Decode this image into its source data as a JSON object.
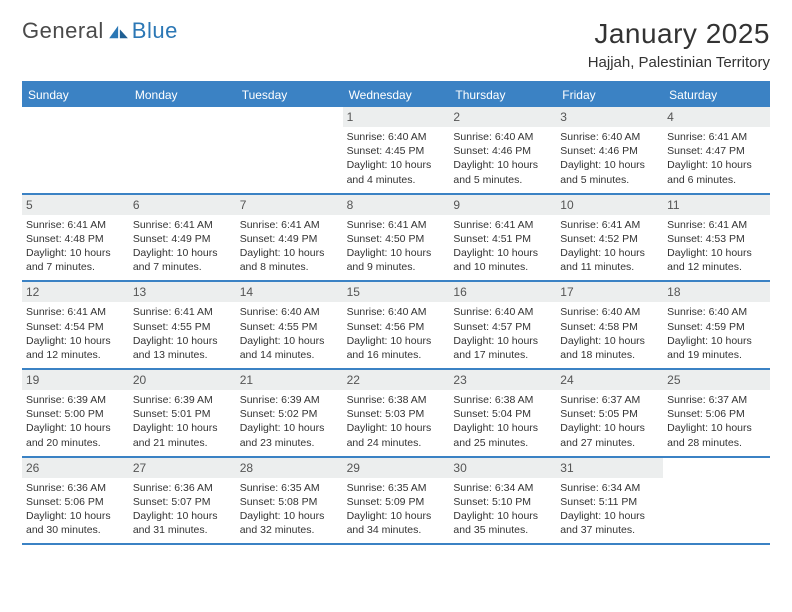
{
  "brand": {
    "text1": "General",
    "text2": "Blue"
  },
  "title": {
    "month": "January 2025",
    "location": "Hajjah, Palestinian Territory"
  },
  "colors": {
    "accent": "#3b82c4",
    "band": "#eceeee",
    "text": "#333333",
    "logo_gray": "#4a4a4a"
  },
  "weekdays": [
    "Sunday",
    "Monday",
    "Tuesday",
    "Wednesday",
    "Thursday",
    "Friday",
    "Saturday"
  ],
  "weeks": [
    [
      {
        "day": ""
      },
      {
        "day": ""
      },
      {
        "day": ""
      },
      {
        "day": "1",
        "sunrise": "Sunrise: 6:40 AM",
        "sunset": "Sunset: 4:45 PM",
        "dl1": "Daylight: 10 hours",
        "dl2": "and 4 minutes."
      },
      {
        "day": "2",
        "sunrise": "Sunrise: 6:40 AM",
        "sunset": "Sunset: 4:46 PM",
        "dl1": "Daylight: 10 hours",
        "dl2": "and 5 minutes."
      },
      {
        "day": "3",
        "sunrise": "Sunrise: 6:40 AM",
        "sunset": "Sunset: 4:46 PM",
        "dl1": "Daylight: 10 hours",
        "dl2": "and 5 minutes."
      },
      {
        "day": "4",
        "sunrise": "Sunrise: 6:41 AM",
        "sunset": "Sunset: 4:47 PM",
        "dl1": "Daylight: 10 hours",
        "dl2": "and 6 minutes."
      }
    ],
    [
      {
        "day": "5",
        "sunrise": "Sunrise: 6:41 AM",
        "sunset": "Sunset: 4:48 PM",
        "dl1": "Daylight: 10 hours",
        "dl2": "and 7 minutes."
      },
      {
        "day": "6",
        "sunrise": "Sunrise: 6:41 AM",
        "sunset": "Sunset: 4:49 PM",
        "dl1": "Daylight: 10 hours",
        "dl2": "and 7 minutes."
      },
      {
        "day": "7",
        "sunrise": "Sunrise: 6:41 AM",
        "sunset": "Sunset: 4:49 PM",
        "dl1": "Daylight: 10 hours",
        "dl2": "and 8 minutes."
      },
      {
        "day": "8",
        "sunrise": "Sunrise: 6:41 AM",
        "sunset": "Sunset: 4:50 PM",
        "dl1": "Daylight: 10 hours",
        "dl2": "and 9 minutes."
      },
      {
        "day": "9",
        "sunrise": "Sunrise: 6:41 AM",
        "sunset": "Sunset: 4:51 PM",
        "dl1": "Daylight: 10 hours",
        "dl2": "and 10 minutes."
      },
      {
        "day": "10",
        "sunrise": "Sunrise: 6:41 AM",
        "sunset": "Sunset: 4:52 PM",
        "dl1": "Daylight: 10 hours",
        "dl2": "and 11 minutes."
      },
      {
        "day": "11",
        "sunrise": "Sunrise: 6:41 AM",
        "sunset": "Sunset: 4:53 PM",
        "dl1": "Daylight: 10 hours",
        "dl2": "and 12 minutes."
      }
    ],
    [
      {
        "day": "12",
        "sunrise": "Sunrise: 6:41 AM",
        "sunset": "Sunset: 4:54 PM",
        "dl1": "Daylight: 10 hours",
        "dl2": "and 12 minutes."
      },
      {
        "day": "13",
        "sunrise": "Sunrise: 6:41 AM",
        "sunset": "Sunset: 4:55 PM",
        "dl1": "Daylight: 10 hours",
        "dl2": "and 13 minutes."
      },
      {
        "day": "14",
        "sunrise": "Sunrise: 6:40 AM",
        "sunset": "Sunset: 4:55 PM",
        "dl1": "Daylight: 10 hours",
        "dl2": "and 14 minutes."
      },
      {
        "day": "15",
        "sunrise": "Sunrise: 6:40 AM",
        "sunset": "Sunset: 4:56 PM",
        "dl1": "Daylight: 10 hours",
        "dl2": "and 16 minutes."
      },
      {
        "day": "16",
        "sunrise": "Sunrise: 6:40 AM",
        "sunset": "Sunset: 4:57 PM",
        "dl1": "Daylight: 10 hours",
        "dl2": "and 17 minutes."
      },
      {
        "day": "17",
        "sunrise": "Sunrise: 6:40 AM",
        "sunset": "Sunset: 4:58 PM",
        "dl1": "Daylight: 10 hours",
        "dl2": "and 18 minutes."
      },
      {
        "day": "18",
        "sunrise": "Sunrise: 6:40 AM",
        "sunset": "Sunset: 4:59 PM",
        "dl1": "Daylight: 10 hours",
        "dl2": "and 19 minutes."
      }
    ],
    [
      {
        "day": "19",
        "sunrise": "Sunrise: 6:39 AM",
        "sunset": "Sunset: 5:00 PM",
        "dl1": "Daylight: 10 hours",
        "dl2": "and 20 minutes."
      },
      {
        "day": "20",
        "sunrise": "Sunrise: 6:39 AM",
        "sunset": "Sunset: 5:01 PM",
        "dl1": "Daylight: 10 hours",
        "dl2": "and 21 minutes."
      },
      {
        "day": "21",
        "sunrise": "Sunrise: 6:39 AM",
        "sunset": "Sunset: 5:02 PM",
        "dl1": "Daylight: 10 hours",
        "dl2": "and 23 minutes."
      },
      {
        "day": "22",
        "sunrise": "Sunrise: 6:38 AM",
        "sunset": "Sunset: 5:03 PM",
        "dl1": "Daylight: 10 hours",
        "dl2": "and 24 minutes."
      },
      {
        "day": "23",
        "sunrise": "Sunrise: 6:38 AM",
        "sunset": "Sunset: 5:04 PM",
        "dl1": "Daylight: 10 hours",
        "dl2": "and 25 minutes."
      },
      {
        "day": "24",
        "sunrise": "Sunrise: 6:37 AM",
        "sunset": "Sunset: 5:05 PM",
        "dl1": "Daylight: 10 hours",
        "dl2": "and 27 minutes."
      },
      {
        "day": "25",
        "sunrise": "Sunrise: 6:37 AM",
        "sunset": "Sunset: 5:06 PM",
        "dl1": "Daylight: 10 hours",
        "dl2": "and 28 minutes."
      }
    ],
    [
      {
        "day": "26",
        "sunrise": "Sunrise: 6:36 AM",
        "sunset": "Sunset: 5:06 PM",
        "dl1": "Daylight: 10 hours",
        "dl2": "and 30 minutes."
      },
      {
        "day": "27",
        "sunrise": "Sunrise: 6:36 AM",
        "sunset": "Sunset: 5:07 PM",
        "dl1": "Daylight: 10 hours",
        "dl2": "and 31 minutes."
      },
      {
        "day": "28",
        "sunrise": "Sunrise: 6:35 AM",
        "sunset": "Sunset: 5:08 PM",
        "dl1": "Daylight: 10 hours",
        "dl2": "and 32 minutes."
      },
      {
        "day": "29",
        "sunrise": "Sunrise: 6:35 AM",
        "sunset": "Sunset: 5:09 PM",
        "dl1": "Daylight: 10 hours",
        "dl2": "and 34 minutes."
      },
      {
        "day": "30",
        "sunrise": "Sunrise: 6:34 AM",
        "sunset": "Sunset: 5:10 PM",
        "dl1": "Daylight: 10 hours",
        "dl2": "and 35 minutes."
      },
      {
        "day": "31",
        "sunrise": "Sunrise: 6:34 AM",
        "sunset": "Sunset: 5:11 PM",
        "dl1": "Daylight: 10 hours",
        "dl2": "and 37 minutes."
      },
      {
        "day": ""
      }
    ]
  ]
}
